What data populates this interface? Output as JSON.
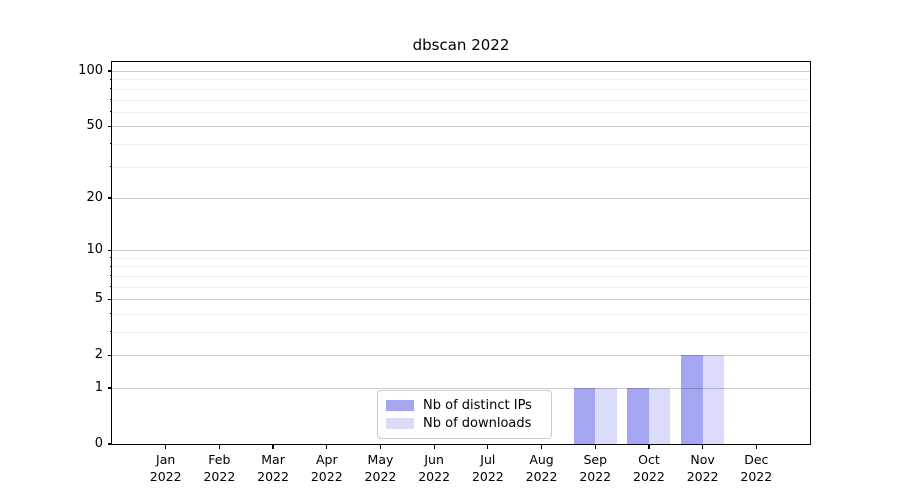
{
  "title": "dbscan 2022",
  "legend": {
    "items": [
      {
        "label": "Nb of distinct IPs",
        "color": "#a5a5f2"
      },
      {
        "label": "Nb of downloads",
        "color": "#dbdbfa"
      }
    ]
  },
  "chart_data": {
    "type": "bar",
    "title": "dbscan 2022",
    "categories": [
      "Jan",
      "Feb",
      "Mar",
      "Apr",
      "May",
      "Jun",
      "Jul",
      "Aug",
      "Sep",
      "Oct",
      "Nov",
      "Dec"
    ],
    "category_year": "2022",
    "series": [
      {
        "name": "Nb of distinct IPs",
        "color": "#a5a5f2",
        "values": [
          0,
          0,
          0,
          0,
          0,
          0,
          0,
          0,
          1,
          1,
          2,
          0
        ]
      },
      {
        "name": "Nb of downloads",
        "color": "#dbdbfa",
        "values": [
          0,
          0,
          0,
          0,
          0,
          0,
          0,
          0,
          1,
          1,
          2,
          0
        ]
      }
    ],
    "xlabel": "",
    "ylabel": "",
    "yscale": "log1p",
    "ylim": [
      0,
      112
    ],
    "y_major_ticks": [
      0,
      1,
      2,
      5,
      10,
      20,
      50,
      100
    ],
    "y_minor_ticks": [
      3,
      4,
      6,
      7,
      8,
      9,
      30,
      40,
      60,
      70,
      80,
      90
    ],
    "grid": true,
    "grid_position": "above-bars",
    "legend_position": "lower center (inside axes)",
    "bar_group_width_fraction": 0.8
  }
}
